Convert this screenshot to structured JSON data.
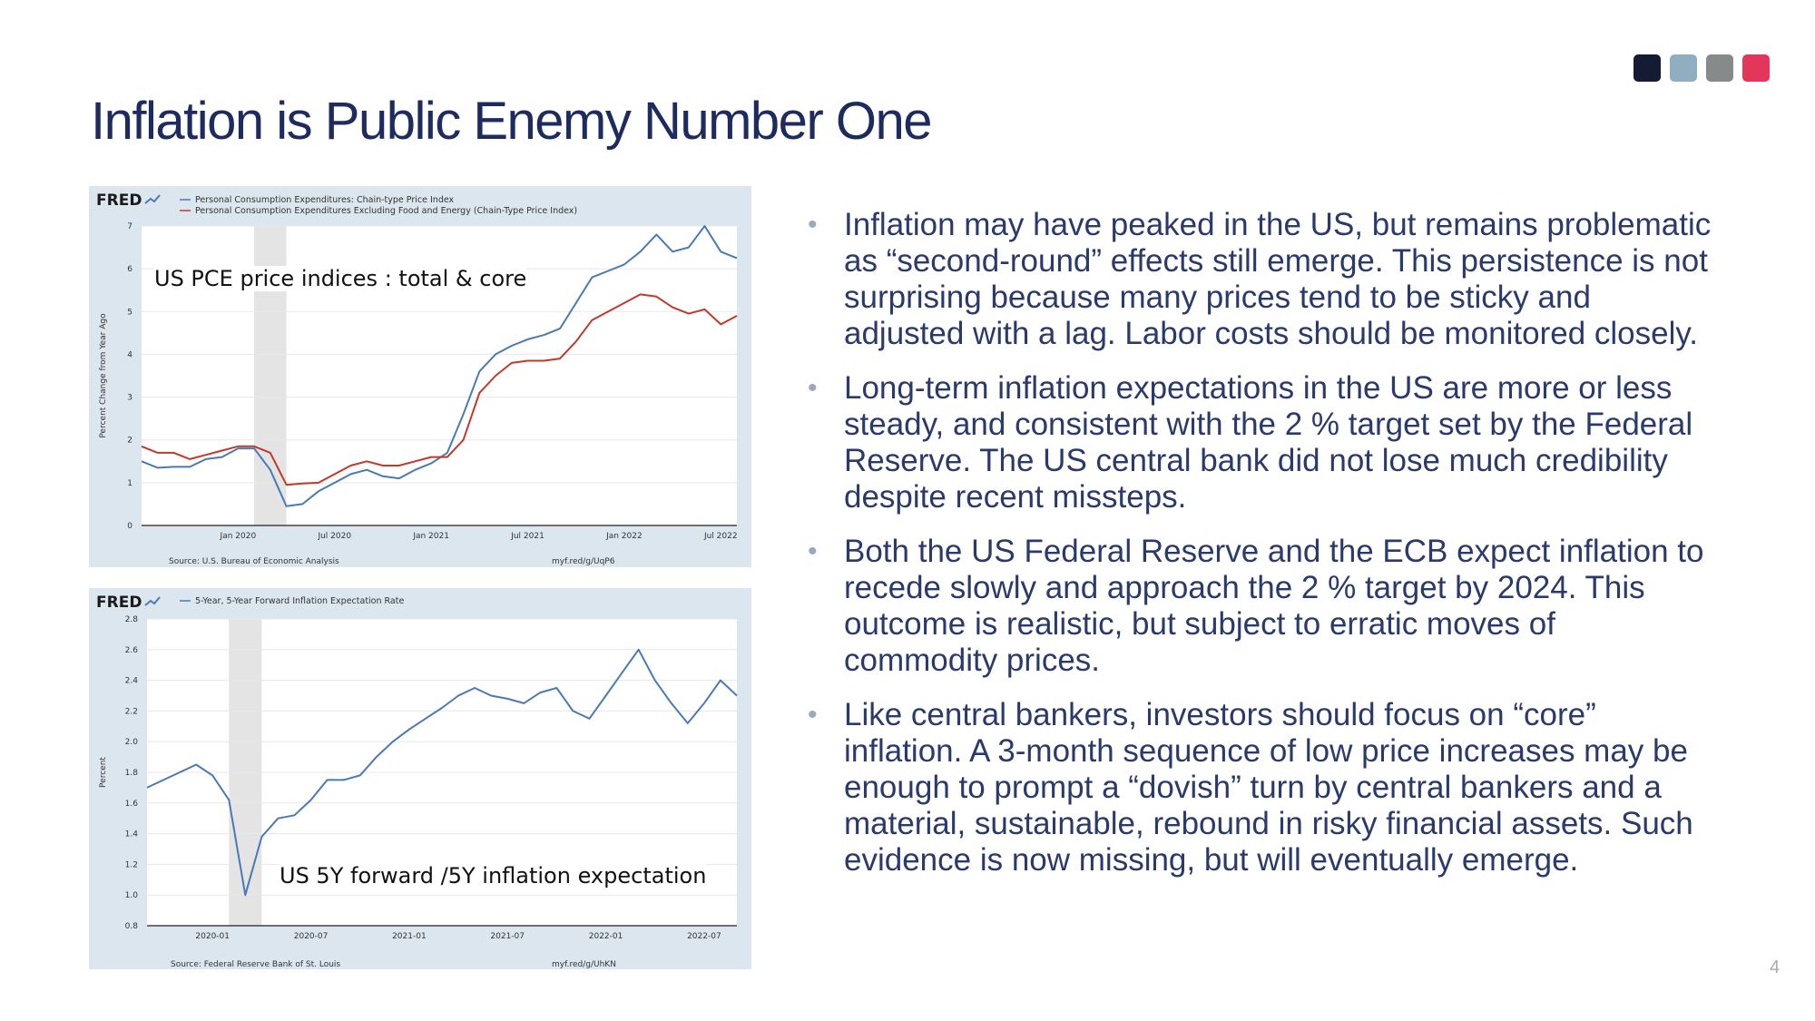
{
  "slide": {
    "title": "Inflation is Public Enemy Number One",
    "page_number": "4",
    "accent_squares": [
      "#141b33",
      "#91adc0",
      "#868a8b",
      "#e2375a"
    ]
  },
  "bullets": [
    "Inflation may have peaked in the US, but remains problematic as “second-round” effects still emerge. This persistence is not surprising because many prices tend to be sticky and adjusted with a lag. Labor costs should be monitored closely.",
    "Long-term inflation expectations in the US are more or less steady, and consistent with the 2 % target set by the Federal Reserve. The US central bank did not lose much credibility despite recent missteps.",
    "Both the US Federal Reserve and the ECB expect inflation to recede slowly and approach the 2 % target by 2024. This outcome is realistic, but subject to erratic moves of commodity prices.",
    "Like central bankers, investors should focus on “core” inflation. A 3-month sequence of low price increases may be enough to prompt a “dovish” turn by central bankers and a material, sustainable, rebound in risky financial assets. Such evidence is now missing, but will eventually emerge."
  ],
  "bullet_symbol": "•",
  "chart_data": [
    {
      "type": "line",
      "logo": "FRED",
      "caption": "US PCE price indices : total & core",
      "ylabel": "Percent Change from Year Ago",
      "ylim": [
        0,
        7
      ],
      "yticks": [
        "0",
        "1",
        "2",
        "3",
        "4",
        "5",
        "6",
        "7"
      ],
      "xlim": [
        "2019-07",
        "2022-08"
      ],
      "xticks": [
        {
          "date": "2020-01",
          "label": "Jan 2020"
        },
        {
          "date": "2020-07",
          "label": "Jul 2020"
        },
        {
          "date": "2021-01",
          "label": "Jan 2021"
        },
        {
          "date": "2021-07",
          "label": "Jul 2021"
        },
        {
          "date": "2022-01",
          "label": "Jan 2022"
        },
        {
          "date": "2022-07",
          "label": "Jul 2022"
        }
      ],
      "recession": [
        "2020-02",
        "2020-04"
      ],
      "source": "Source: U.S. Bureau of Economic Analysis",
      "url": "myf.red/g/UqP6",
      "grid": true,
      "series": [
        {
          "name": "Personal Consumption Expenditures: Chain-type Price Index",
          "color": "#4a7ab3",
          "x": [
            "2019-07",
            "2019-08",
            "2019-09",
            "2019-10",
            "2019-11",
            "2019-12",
            "2020-01",
            "2020-02",
            "2020-03",
            "2020-04",
            "2020-05",
            "2020-06",
            "2020-07",
            "2020-08",
            "2020-09",
            "2020-10",
            "2020-11",
            "2020-12",
            "2021-01",
            "2021-02",
            "2021-03",
            "2021-04",
            "2021-05",
            "2021-06",
            "2021-07",
            "2021-08",
            "2021-09",
            "2021-10",
            "2021-11",
            "2021-12",
            "2022-01",
            "2022-02",
            "2022-03",
            "2022-04",
            "2022-05",
            "2022-06",
            "2022-07",
            "2022-08"
          ],
          "values": [
            1.5,
            1.35,
            1.37,
            1.37,
            1.55,
            1.6,
            1.8,
            1.8,
            1.3,
            0.45,
            0.5,
            0.8,
            1.0,
            1.2,
            1.3,
            1.15,
            1.1,
            1.3,
            1.45,
            1.7,
            2.6,
            3.6,
            4.0,
            4.2,
            4.35,
            4.45,
            4.6,
            5.2,
            5.8,
            5.95,
            6.1,
            6.4,
            6.8,
            6.4,
            6.5,
            7.0,
            6.4,
            6.25
          ]
        },
        {
          "name": "Personal Consumption Expenditures Excluding Food and Energy (Chain-Type Price Index)",
          "color": "#c0392b",
          "x": [
            "2019-07",
            "2019-08",
            "2019-09",
            "2019-10",
            "2019-11",
            "2019-12",
            "2020-01",
            "2020-02",
            "2020-03",
            "2020-04",
            "2020-05",
            "2020-06",
            "2020-07",
            "2020-08",
            "2020-09",
            "2020-10",
            "2020-11",
            "2020-12",
            "2021-01",
            "2021-02",
            "2021-03",
            "2021-04",
            "2021-05",
            "2021-06",
            "2021-07",
            "2021-08",
            "2021-09",
            "2021-10",
            "2021-11",
            "2021-12",
            "2022-01",
            "2022-02",
            "2022-03",
            "2022-04",
            "2022-05",
            "2022-06",
            "2022-07",
            "2022-08"
          ],
          "values": [
            1.85,
            1.7,
            1.7,
            1.55,
            1.65,
            1.75,
            1.85,
            1.85,
            1.7,
            0.95,
            0.98,
            1.0,
            1.2,
            1.4,
            1.5,
            1.4,
            1.4,
            1.5,
            1.6,
            1.6,
            2.0,
            3.1,
            3.5,
            3.8,
            3.85,
            3.85,
            3.9,
            4.3,
            4.8,
            5.0,
            5.2,
            5.4,
            5.35,
            5.1,
            4.95,
            5.05,
            4.7,
            4.9
          ]
        }
      ]
    },
    {
      "type": "line",
      "logo": "FRED",
      "caption": "US 5Y forward /5Y inflation expectation",
      "ylabel": "Percent",
      "ylim": [
        0.8,
        2.8
      ],
      "yticks": [
        "0.8",
        "1.0",
        "1.2",
        "1.4",
        "1.6",
        "1.8",
        "2.0",
        "2.2",
        "2.4",
        "2.6",
        "2.8"
      ],
      "xlim": [
        "2019-09",
        "2022-09"
      ],
      "xticks": [
        {
          "date": "2020-01",
          "label": "2020-01"
        },
        {
          "date": "2020-07",
          "label": "2020-07"
        },
        {
          "date": "2021-01",
          "label": "2021-01"
        },
        {
          "date": "2021-07",
          "label": "2021-07"
        },
        {
          "date": "2022-01",
          "label": "2022-01"
        },
        {
          "date": "2022-07",
          "label": "2022-07"
        }
      ],
      "recession": [
        "2020-02",
        "2020-04"
      ],
      "source": "Source: Federal Reserve Bank of St. Louis",
      "url": "myf.red/g/UhKN",
      "grid": true,
      "series": [
        {
          "name": "5-Year, 5-Year Forward Inflation Expectation Rate",
          "color": "#4a7ab3",
          "x": [
            "2019-09",
            "2019-10",
            "2019-11",
            "2019-12",
            "2020-01",
            "2020-02",
            "2020-03",
            "2020-04",
            "2020-05",
            "2020-06",
            "2020-07",
            "2020-08",
            "2020-09",
            "2020-10",
            "2020-11",
            "2020-12",
            "2021-01",
            "2021-02",
            "2021-03",
            "2021-04",
            "2021-05",
            "2021-06",
            "2021-07",
            "2021-08",
            "2021-09",
            "2021-10",
            "2021-11",
            "2021-12",
            "2022-01",
            "2022-02",
            "2022-03",
            "2022-04",
            "2022-05",
            "2022-06",
            "2022-07",
            "2022-08",
            "2022-09"
          ],
          "values": [
            1.7,
            1.75,
            1.8,
            1.85,
            1.78,
            1.62,
            1.0,
            1.38,
            1.5,
            1.52,
            1.62,
            1.75,
            1.75,
            1.78,
            1.9,
            2.0,
            2.08,
            2.15,
            2.22,
            2.3,
            2.35,
            2.3,
            2.28,
            2.25,
            2.32,
            2.35,
            2.2,
            2.15,
            2.3,
            2.45,
            2.6,
            2.4,
            2.25,
            2.12,
            2.25,
            2.4,
            2.3
          ]
        }
      ]
    }
  ]
}
